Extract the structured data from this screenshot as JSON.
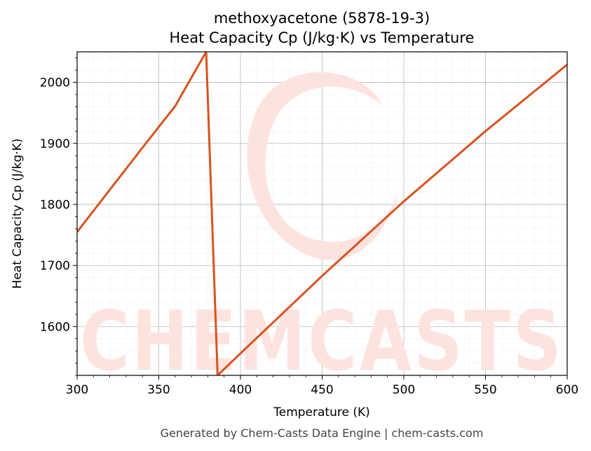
{
  "chart_data": {
    "type": "line",
    "title": "methoxyacetone (5878-19-3)",
    "subtitle": "Heat Capacity Cp (J/kg·K) vs Temperature",
    "xlabel": "Temperature (K)",
    "ylabel": "Heat Capacity Cp (J/kg·K)",
    "xlim": [
      300,
      600
    ],
    "ylim": [
      1520,
      2050
    ],
    "xticks": [
      300,
      350,
      400,
      450,
      500,
      550,
      600
    ],
    "yticks": [
      1600,
      1700,
      1800,
      1900,
      2000
    ],
    "grid": true,
    "line_color": "#d9521f",
    "series": [
      {
        "x": [
          300,
          320,
          340,
          360,
          379,
          386,
          400,
          450,
          500,
          550,
          600
        ],
        "y": [
          1755,
          1824,
          1893,
          1961,
          2050,
          1520,
          1556,
          1683,
          1805,
          1920,
          2029
        ]
      }
    ]
  },
  "watermark": {
    "text": "CHEMCASTS"
  },
  "footer": {
    "text": "Generated by Chem-Casts Data Engine | chem-casts.com"
  }
}
